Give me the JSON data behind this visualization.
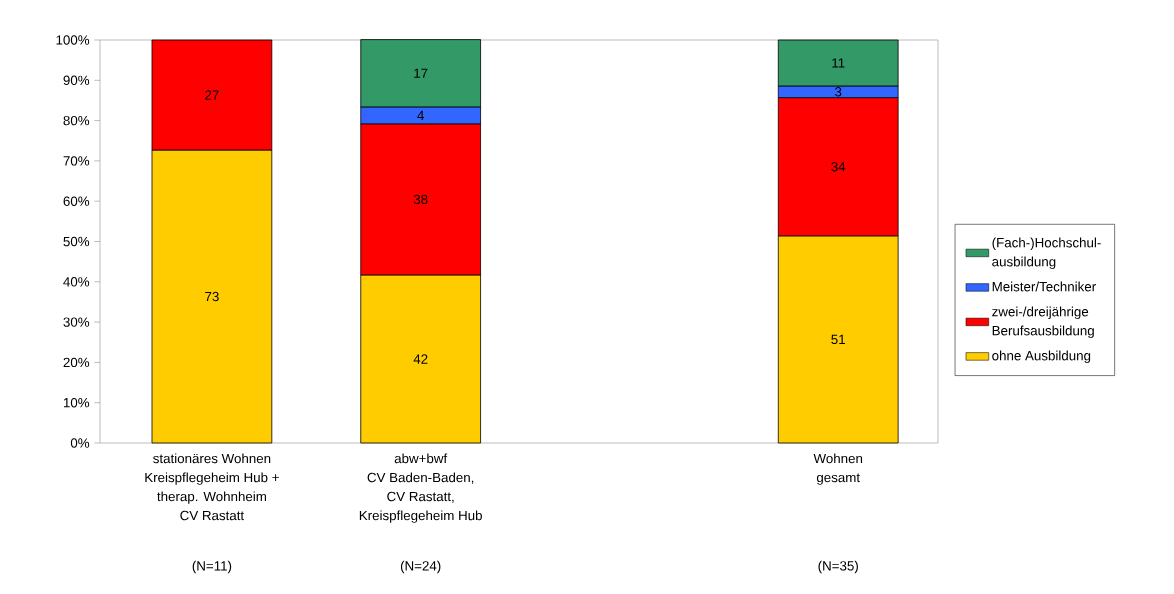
{
  "chart_data": {
    "type": "bar",
    "stacked": true,
    "categories": [
      "stationäres Wohnen\nKreispflegeheim Hub +\ntherap. Wohnheim\nCV Rastatt",
      "abw+bwf\nCV Baden-Baden,\nCV Rastatt,\nKreispflegeheim Hub",
      null,
      "Wohnen\ngesamt"
    ],
    "series": [
      {
        "name": "ohne Ausbildung",
        "color": "#ffcc00",
        "values": [
          72.7,
          41.7,
          null,
          51.4
        ],
        "value_labels": [
          "73",
          "42",
          null,
          "51"
        ]
      },
      {
        "name": "zwei-/dreijährige\nBerufsausbildung",
        "color": "#ff0000",
        "values": [
          27.3,
          37.5,
          null,
          34.3
        ],
        "value_labels": [
          "27",
          "38",
          null,
          "34"
        ]
      },
      {
        "name": "Meister/Techniker",
        "color": "#3366ff",
        "values": [
          null,
          4.2,
          null,
          2.9
        ],
        "value_labels": [
          null,
          "4",
          null,
          "3"
        ]
      },
      {
        "name": "(Fach-)Hochschul-\nausbildung",
        "color": "#339966",
        "values": [
          null,
          16.7,
          null,
          11.4
        ],
        "value_labels": [
          null,
          "17",
          null,
          "11"
        ]
      }
    ],
    "ylim": [
      0,
      100
    ],
    "yticks": [
      {
        "value": 0,
        "label": "0%"
      },
      {
        "value": 10,
        "label": "10%"
      },
      {
        "value": 20,
        "label": "20%"
      },
      {
        "value": 30,
        "label": "30%"
      },
      {
        "value": 40,
        "label": "40%"
      },
      {
        "value": 50,
        "label": "50%"
      },
      {
        "value": 60,
        "label": "60%"
      },
      {
        "value": 70,
        "label": "70%"
      },
      {
        "value": 80,
        "label": "80%"
      },
      {
        "value": 90,
        "label": "90%"
      },
      {
        "value": 100,
        "label": "100%"
      }
    ],
    "legend": "right",
    "annotations": [
      "(N=11)",
      "(N=24)",
      "(N=35)"
    ]
  }
}
